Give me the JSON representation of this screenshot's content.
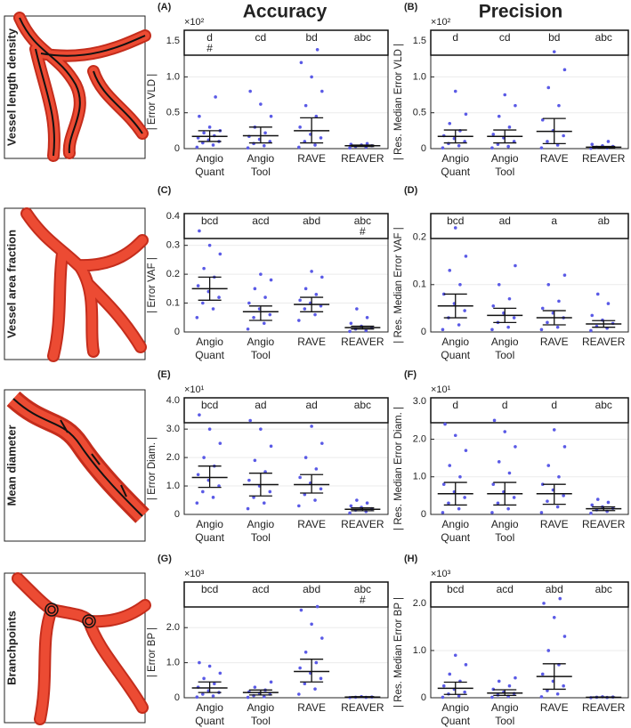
{
  "column_titles": [
    "Accuracy",
    "Precision"
  ],
  "row_titles": [
    "Vessel length density",
    "Vessel area fraction",
    "Mean diameter",
    "Branchpoints"
  ],
  "chart_data": [
    {
      "type": "dotplot",
      "panel": "(A)",
      "ylabel": "| Error VLD |",
      "multiplier": "×10²",
      "color": "#5a5ae6",
      "categories": [
        "Angio Quant",
        "Angio Tool",
        "RAVE",
        "REAVER"
      ],
      "ylim": [
        0,
        1.65
      ],
      "yticks": [
        0,
        0.5,
        {
          "value": 1,
          "label": "1.0"
        },
        1.5
      ],
      "letters": [
        "d",
        "cd",
        "bd",
        "abc"
      ],
      "hash": [
        "#",
        null,
        null,
        null
      ],
      "points": [
        [
          0.02,
          0.05,
          0.08,
          0.1,
          0.12,
          0.15,
          0.18,
          0.22,
          0.25,
          0.3,
          0.45,
          0.72
        ],
        [
          0.01,
          0.04,
          0.07,
          0.1,
          0.13,
          0.17,
          0.22,
          0.3,
          0.45,
          0.62,
          0.8
        ],
        [
          0.02,
          0.05,
          0.1,
          0.15,
          0.2,
          0.3,
          0.45,
          0.6,
          0.8,
          1.0,
          1.2,
          1.38
        ],
        [
          0.01,
          0.02,
          0.03,
          0.04,
          0.05,
          0.06,
          0.07
        ]
      ],
      "mean": [
        0.17,
        0.18,
        0.25,
        0.04
      ],
      "ci_low": [
        0.1,
        0.08,
        0.08,
        0.03
      ],
      "ci_high": [
        0.25,
        0.3,
        0.43,
        0.05
      ]
    },
    {
      "type": "dotplot",
      "panel": "(B)",
      "ylabel": "| Res. Median Error VLD |",
      "multiplier": "×10²",
      "color": "#5a5ae6",
      "categories": [
        "Angio Quant",
        "Angio Tool",
        "RAVE",
        "REAVER"
      ],
      "ylim": [
        0,
        1.65
      ],
      "yticks": [
        0,
        0.5,
        {
          "value": 1,
          "label": "1.0"
        },
        1.5
      ],
      "letters": [
        "d",
        "cd",
        "bd",
        "abc"
      ],
      "hash": [
        null,
        null,
        null,
        null
      ],
      "points": [
        [
          0.01,
          0.04,
          0.07,
          0.1,
          0.14,
          0.18,
          0.25,
          0.35,
          0.48,
          0.8
        ],
        [
          0.01,
          0.03,
          0.06,
          0.1,
          0.15,
          0.2,
          0.3,
          0.45,
          0.6,
          0.75
        ],
        [
          0.01,
          0.05,
          0.1,
          0.18,
          0.25,
          0.4,
          0.6,
          0.85,
          1.1,
          1.35
        ],
        [
          0.005,
          0.01,
          0.02,
          0.03,
          0.04,
          0.06,
          0.1
        ]
      ],
      "mean": [
        0.17,
        0.17,
        0.24,
        0.02
      ],
      "ci_low": [
        0.08,
        0.08,
        0.07,
        0.01
      ],
      "ci_high": [
        0.26,
        0.26,
        0.42,
        0.03
      ]
    },
    {
      "type": "dotplot",
      "panel": "(C)",
      "ylabel": "| Error VAF |",
      "color": "#5a5ae6",
      "categories": [
        "Angio Quant",
        "Angio Tool",
        "RAVE",
        "REAVER"
      ],
      "ylim": [
        0,
        0.41
      ],
      "yticks": [
        0,
        0.1,
        0.2,
        0.3,
        0.4
      ],
      "letters": [
        "bcd",
        "acd",
        "abd",
        "abc"
      ],
      "hash": [
        null,
        null,
        null,
        "#"
      ],
      "points": [
        [
          0.05,
          0.08,
          0.1,
          0.12,
          0.14,
          0.16,
          0.19,
          0.22,
          0.27,
          0.3,
          0.35
        ],
        [
          0.01,
          0.03,
          0.05,
          0.06,
          0.08,
          0.1,
          0.12,
          0.15,
          0.18,
          0.2
        ],
        [
          0.04,
          0.06,
          0.08,
          0.09,
          0.1,
          0.11,
          0.13,
          0.15,
          0.19,
          0.21
        ],
        [
          0.002,
          0.005,
          0.01,
          0.015,
          0.02,
          0.03,
          0.05,
          0.08
        ]
      ],
      "mean": [
        0.15,
        0.07,
        0.095,
        0.015
      ],
      "ci_low": [
        0.11,
        0.04,
        0.07,
        0.01
      ],
      "ci_high": [
        0.19,
        0.09,
        0.12,
        0.02
      ]
    },
    {
      "type": "dotplot",
      "panel": "(D)",
      "ylabel": "| Res. Median Error VAF |",
      "color": "#5a5ae6",
      "categories": [
        "Angio Quant",
        "Angio Tool",
        "RAVE",
        "REAVER"
      ],
      "ylim": [
        0,
        0.25
      ],
      "yticks": [
        0,
        0.1,
        0.2
      ],
      "letters": [
        "bcd",
        "ad",
        "a",
        "ab"
      ],
      "hash": [
        null,
        null,
        null,
        null
      ],
      "points": [
        [
          0.005,
          0.015,
          0.03,
          0.045,
          0.06,
          0.08,
          0.1,
          0.13,
          0.16,
          0.22
        ],
        [
          0.005,
          0.01,
          0.02,
          0.03,
          0.04,
          0.055,
          0.07,
          0.1,
          0.14
        ],
        [
          0.005,
          0.01,
          0.02,
          0.03,
          0.04,
          0.05,
          0.065,
          0.1,
          0.12
        ],
        [
          0.003,
          0.008,
          0.012,
          0.018,
          0.025,
          0.035,
          0.06,
          0.08
        ]
      ],
      "mean": [
        0.055,
        0.035,
        0.03,
        0.017
      ],
      "ci_low": [
        0.03,
        0.02,
        0.015,
        0.01
      ],
      "ci_high": [
        0.08,
        0.05,
        0.045,
        0.024
      ]
    },
    {
      "type": "dotplot",
      "panel": "(E)",
      "ylabel": "| Error Diam. |",
      "multiplier": "×10¹",
      "color": "#5a5ae6",
      "categories": [
        "Angio Quant",
        "Angio Tool",
        "RAVE",
        "REAVER"
      ],
      "ylim": [
        0,
        4.1
      ],
      "yticks": [
        0,
        {
          "value": 1,
          "label": "1.0"
        },
        {
          "value": 2,
          "label": "2.0"
        },
        {
          "value": 3,
          "label": "3.0"
        },
        {
          "value": 4,
          "label": "4.0"
        }
      ],
      "letters": [
        "bcd",
        "ad",
        "ad",
        "abc"
      ],
      "hash": [
        null,
        null,
        null,
        null
      ],
      "points": [
        [
          0.4,
          0.6,
          0.8,
          1.0,
          1.2,
          1.4,
          1.7,
          2.0,
          2.5,
          3.0,
          3.5
        ],
        [
          0.2,
          0.4,
          0.6,
          0.8,
          1.0,
          1.2,
          1.5,
          1.9,
          2.4,
          3.0,
          3.3
        ],
        [
          0.3,
          0.5,
          0.7,
          0.9,
          1.1,
          1.3,
          1.6,
          2.0,
          2.5,
          3.1
        ],
        [
          0.05,
          0.1,
          0.15,
          0.2,
          0.25,
          0.3,
          0.4,
          0.5
        ]
      ],
      "mean": [
        1.3,
        1.05,
        1.05,
        0.18
      ],
      "ci_low": [
        0.95,
        0.65,
        0.75,
        0.13
      ],
      "ci_high": [
        1.7,
        1.45,
        1.4,
        0.23
      ]
    },
    {
      "type": "dotplot",
      "panel": "(F)",
      "ylabel": "| Res. Median Error Diam. |",
      "multiplier": "×10¹",
      "color": "#5a5ae6",
      "categories": [
        "Angio Quant",
        "Angio Tool",
        "RAVE",
        "REAVER"
      ],
      "ylim": [
        0,
        3.1
      ],
      "yticks": [
        0,
        {
          "value": 1,
          "label": "1.0"
        },
        {
          "value": 2,
          "label": "2.0"
        },
        {
          "value": 3,
          "label": "3.0"
        }
      ],
      "letters": [
        "d",
        "d",
        "d",
        "abc"
      ],
      "hash": [
        null,
        null,
        null,
        null
      ],
      "points": [
        [
          0.05,
          0.15,
          0.3,
          0.45,
          0.6,
          0.8,
          1.0,
          1.3,
          1.7,
          2.1,
          2.4
        ],
        [
          0.05,
          0.15,
          0.3,
          0.45,
          0.6,
          0.8,
          1.1,
          1.4,
          1.8,
          2.2,
          2.5
        ],
        [
          0.05,
          0.2,
          0.35,
          0.5,
          0.65,
          0.8,
          1.0,
          1.3,
          1.8,
          2.25
        ],
        [
          0.03,
          0.08,
          0.12,
          0.16,
          0.2,
          0.25,
          0.32,
          0.4
        ]
      ],
      "mean": [
        0.55,
        0.55,
        0.55,
        0.15
      ],
      "ci_low": [
        0.25,
        0.25,
        0.27,
        0.1
      ],
      "ci_high": [
        0.85,
        0.85,
        0.8,
        0.2
      ]
    },
    {
      "type": "dotplot",
      "panel": "(G)",
      "ylabel": "| Error BP |",
      "multiplier": "×10³",
      "color": "#5a5ae6",
      "categories": [
        "Angio Quant",
        "Angio Tool",
        "RAVE",
        "REAVER"
      ],
      "ylim": [
        0,
        3.3
      ],
      "yticks": [
        0,
        {
          "value": 1,
          "label": "1.0"
        },
        {
          "value": 2,
          "label": "2.0"
        }
      ],
      "letters": [
        "bcd",
        "acd",
        "abd",
        "abc"
      ],
      "hash": [
        null,
        null,
        null,
        "#"
      ],
      "points": [
        [
          0.02,
          0.05,
          0.1,
          0.15,
          0.2,
          0.3,
          0.4,
          0.55,
          0.7,
          0.9,
          1.0
        ],
        [
          0.01,
          0.03,
          0.06,
          0.1,
          0.13,
          0.17,
          0.22,
          0.3,
          0.45
        ],
        [
          0.1,
          0.25,
          0.4,
          0.55,
          0.7,
          0.85,
          1.0,
          1.3,
          1.7,
          2.1,
          2.5,
          2.6
        ],
        [
          0.005,
          0.01,
          0.015,
          0.02,
          0.03
        ]
      ],
      "mean": [
        0.28,
        0.15,
        0.75,
        0.02
      ],
      "ci_low": [
        0.15,
        0.08,
        0.45,
        0.01
      ],
      "ci_high": [
        0.45,
        0.22,
        1.1,
        0.03
      ]
    },
    {
      "type": "dotplot",
      "panel": "(H)",
      "ylabel": "| Res. Median Error BP |",
      "multiplier": "×10³",
      "color": "#5a5ae6",
      "categories": [
        "Angio Quant",
        "Angio Tool",
        "RAVE",
        "REAVER"
      ],
      "ylim": [
        0,
        2.45
      ],
      "yticks": [
        0,
        {
          "value": 1,
          "label": "1.0"
        },
        {
          "value": 2,
          "label": "2.0"
        }
      ],
      "letters": [
        "bcd",
        "acd",
        "abd",
        "abc"
      ],
      "hash": [
        null,
        null,
        null,
        null
      ],
      "points": [
        [
          0.01,
          0.04,
          0.08,
          0.12,
          0.18,
          0.25,
          0.35,
          0.5,
          0.7,
          0.9
        ],
        [
          0.01,
          0.03,
          0.06,
          0.09,
          0.12,
          0.18,
          0.25,
          0.35,
          0.42
        ],
        [
          0.02,
          0.08,
          0.15,
          0.25,
          0.35,
          0.5,
          0.7,
          1.0,
          1.3,
          1.7,
          2.0,
          2.1
        ],
        [
          0.002,
          0.005,
          0.01,
          0.015,
          0.02
        ]
      ],
      "mean": [
        0.2,
        0.1,
        0.45,
        0.01
      ],
      "ci_low": [
        0.07,
        0.05,
        0.18,
        0.005
      ],
      "ci_high": [
        0.33,
        0.17,
        0.72,
        0.015
      ]
    }
  ]
}
